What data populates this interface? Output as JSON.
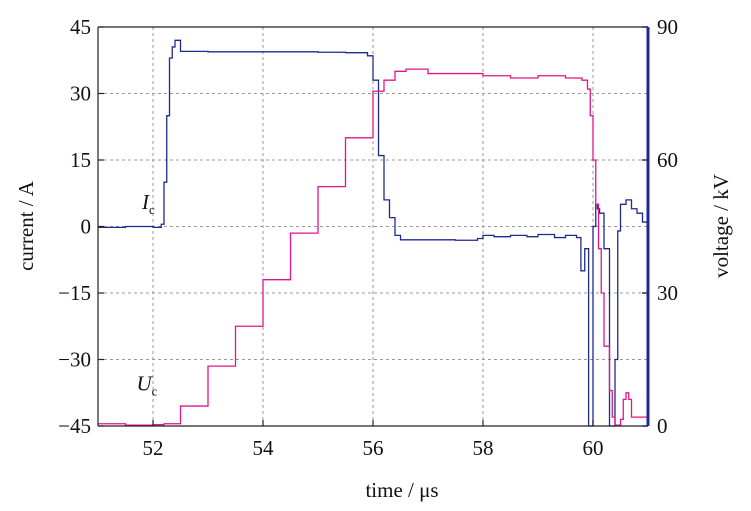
{
  "chart_data": {
    "type": "line",
    "title": "",
    "xlabel": "time / μs",
    "ylabel_left": "current / A",
    "ylabel_right": "voltage / kV",
    "xlim": [
      51,
      61
    ],
    "ylim_left": [
      -45,
      45
    ],
    "ylim_right": [
      0,
      90
    ],
    "x_ticks": [
      52,
      54,
      56,
      58,
      60
    ],
    "y_ticks_left": [
      45,
      30,
      15,
      0,
      -15,
      -30,
      -45
    ],
    "y_tick_labels_left": [
      "45",
      "30",
      "15",
      "0",
      "−15",
      "−30",
      "−45"
    ],
    "y_ticks_right": [
      90,
      60,
      30,
      0
    ],
    "grid": true,
    "colors": {
      "current": "#1f2a8c",
      "voltage": "#e0158a",
      "right_axis": "#1f2a8c",
      "grid": "#9a9a9a"
    },
    "annotations": [
      {
        "text": "I",
        "subscript": "c",
        "x": 51.8,
        "y": 4,
        "axis": "left"
      },
      {
        "text": "U",
        "subscript": "c",
        "x": 51.7,
        "y": -37,
        "axis": "left"
      }
    ],
    "series": [
      {
        "axis": "left",
        "x": [
          51.0,
          51.5,
          52.0,
          52.15,
          52.2,
          52.25,
          52.3,
          52.35,
          52.4,
          52.5,
          53.0,
          54.0,
          55.0,
          55.5,
          55.9,
          56.0,
          56.1,
          56.2,
          56.3,
          56.4,
          56.5,
          57.0,
          57.5,
          57.9,
          58.0,
          58.2,
          58.5,
          58.8,
          59.0,
          59.3,
          59.5,
          59.7,
          59.78,
          59.85,
          59.92,
          59.96,
          60.0,
          60.05,
          60.08,
          60.12,
          60.2,
          60.3,
          60.35,
          60.4,
          60.45,
          60.5,
          60.6,
          60.7,
          60.8,
          60.9,
          61.0
        ],
        "values": [
          -0.2,
          0.0,
          -0.2,
          0.5,
          10,
          25,
          38,
          40.5,
          42,
          39.5,
          39.4,
          39.4,
          39.3,
          39.2,
          38.5,
          33,
          16,
          6,
          2,
          -2.0,
          -3.0,
          -3.0,
          -3.1,
          -2.7,
          -2.0,
          -2.3,
          -2.0,
          -2.3,
          -1.8,
          -2.5,
          -2.0,
          -2.5,
          -10,
          -5,
          -45,
          -45,
          0.0,
          5,
          4,
          3,
          -5,
          -45,
          -45,
          -30,
          -1,
          5,
          6,
          4,
          3,
          1,
          2
        ]
      },
      {
        "axis": "right",
        "x": [
          51.0,
          51.5,
          52.0,
          52.2,
          52.5,
          53.0,
          53.5,
          54.0,
          54.5,
          55.0,
          55.5,
          56.0,
          56.2,
          56.4,
          56.6,
          57.0,
          57.5,
          58.0,
          58.5,
          59.0,
          59.5,
          59.8,
          59.9,
          59.95,
          60.0,
          60.05,
          60.1,
          60.15,
          60.2,
          60.3,
          60.35,
          60.4,
          60.45,
          60.5,
          60.55,
          60.6,
          60.65,
          60.7,
          61.0
        ],
        "values": [
          0.5,
          0.2,
          0.3,
          0.5,
          4.5,
          13.5,
          22.5,
          33,
          43.5,
          54,
          65,
          75.5,
          78,
          80,
          80.5,
          79.5,
          79.5,
          79.0,
          78.5,
          79.0,
          78.5,
          78.0,
          76,
          70,
          60,
          50,
          40,
          30,
          18,
          8,
          2,
          0.2,
          0.2,
          1.5,
          6,
          7.5,
          6,
          2,
          0.2
        ]
      }
    ]
  }
}
